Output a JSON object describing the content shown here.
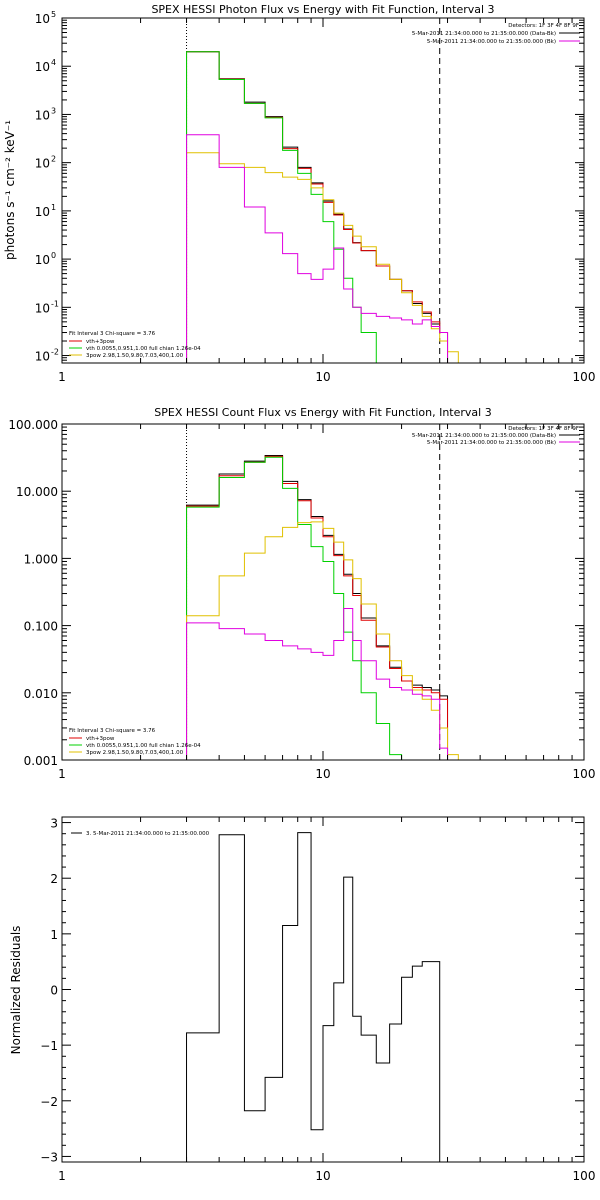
{
  "chart_data": [
    {
      "type": "line",
      "title": "SPEX HESSI Photon Flux vs Energy with Fit Function, Interval 3",
      "ylabel": "photons s⁻¹ cm⁻² keV⁻¹",
      "xscale": "log",
      "yscale": "log",
      "xlim": [
        1,
        100
      ],
      "ylim": [
        0.007,
        100000
      ],
      "xticks": [
        {
          "v": 1,
          "label": "1"
        },
        {
          "v": 10,
          "label": "10"
        },
        {
          "v": 100,
          "label": "100"
        }
      ],
      "yticks": [
        {
          "v": 0.01,
          "base": "10",
          "exp": "-2"
        },
        {
          "v": 0.1,
          "base": "10",
          "exp": "-1"
        },
        {
          "v": 1,
          "base": "10",
          "exp": "0"
        },
        {
          "v": 10,
          "base": "10",
          "exp": "1"
        },
        {
          "v": 100,
          "base": "10",
          "exp": "2"
        },
        {
          "v": 1000,
          "base": "10",
          "exp": "3"
        },
        {
          "v": 10000,
          "base": "10",
          "exp": "4"
        },
        {
          "v": 100000,
          "base": "10",
          "exp": "5"
        }
      ],
      "vlines": [
        {
          "x": 3,
          "style": "dotted"
        },
        {
          "x": 28,
          "style": "dashed"
        }
      ],
      "legend_header": "Detectors: 1F 3F 4F 8F 9F",
      "legend": [
        {
          "label": "5-Mar-2011 21:34:00.000 to 21:35:00.000 (Data-Bk)",
          "color": "#000000"
        },
        {
          "label": "5-Mar-2011 21:34:00.000 to 21:35:00.000 (Bk)",
          "color": "#e000e0"
        }
      ],
      "fit_header": "Fit Interval 3   Chi-square = 3.76",
      "fit_legend": [
        {
          "label": "vth+3pow",
          "color": "#e00000"
        },
        {
          "label": "vth 0.0055,0.951,1.00  full chian 1.26e-04",
          "color": "#00d000"
        },
        {
          "label": "3pow 2.98,1.50,9.80,7.03,400,1.00",
          "color": "#e0c000"
        }
      ],
      "bin_edges": [
        3,
        4,
        5,
        6,
        7,
        8,
        9,
        10,
        11,
        12,
        13,
        14,
        16,
        18,
        20,
        22,
        24,
        26,
        28,
        30,
        33
      ],
      "series": [
        {
          "color": "#000000",
          "values": [
            20000,
            5500,
            1800,
            900,
            210,
            80,
            38,
            16,
            8.5,
            4.2,
            2.2,
            1.5,
            0.72,
            0.38,
            0.22,
            0.12,
            0.075,
            0.045,
            0.03,
            null
          ]
        },
        {
          "color": "#e00000",
          "values": [
            20000,
            5400,
            1700,
            870,
            195,
            76,
            36,
            15,
            8.2,
            4.1,
            2.15,
            1.5,
            0.72,
            0.38,
            0.22,
            0.13,
            0.08,
            0.05,
            0.03,
            null
          ]
        },
        {
          "color": "#00d000",
          "values": [
            20000,
            5300,
            1700,
            850,
            180,
            60,
            22,
            6,
            1.6,
            0.4,
            0.1,
            0.03,
            null,
            null,
            null,
            null,
            null,
            null,
            null,
            null
          ]
        },
        {
          "color": "#e0c000",
          "values": [
            160,
            95,
            80,
            62,
            50,
            45,
            30,
            17,
            9,
            5,
            3,
            1.8,
            0.78,
            0.38,
            0.2,
            0.11,
            0.065,
            0.036,
            0.02,
            0.012
          ]
        },
        {
          "color": "#e000e0",
          "values": [
            380,
            80,
            12,
            3.5,
            1.3,
            0.5,
            0.38,
            0.62,
            1.7,
            0.24,
            0.1,
            0.075,
            0.065,
            0.06,
            0.055,
            0.045,
            0.055,
            0.04,
            0.03,
            null
          ]
        }
      ]
    },
    {
      "type": "line",
      "title": "SPEX HESSI Count Flux vs Energy with Fit Function, Interval 3",
      "ylabel": "",
      "xscale": "log",
      "yscale": "log",
      "xlim": [
        1,
        100
      ],
      "ylim": [
        0.001,
        100
      ],
      "xticks": [
        {
          "v": 1,
          "label": "1"
        },
        {
          "v": 10,
          "label": "10"
        },
        {
          "v": 100,
          "label": "100"
        }
      ],
      "yticks": [
        {
          "v": 0.001,
          "label": "0.001"
        },
        {
          "v": 0.01,
          "label": "0.010"
        },
        {
          "v": 0.1,
          "label": "0.100"
        },
        {
          "v": 1,
          "label": "1.000"
        },
        {
          "v": 10,
          "label": "10.000"
        },
        {
          "v": 100,
          "label": "100.000"
        }
      ],
      "vlines": [
        {
          "x": 3,
          "style": "dotted"
        },
        {
          "x": 28,
          "style": "dashed"
        }
      ],
      "legend_header": "Detectors: 1F 3F 4F 8F 9F",
      "legend": [
        {
          "label": "5-Mar-2011 21:34:00.000 to 21:35:00.000 (Data-Bk)",
          "color": "#000000"
        },
        {
          "label": "5-Mar-2011 21:34:00.000 to 21:35:00.000 (Bk)",
          "color": "#e000e0"
        }
      ],
      "fit_header": "Fit Interval 3   Chi-square = 3.76",
      "fit_legend": [
        {
          "label": "vth+3pow",
          "color": "#e00000"
        },
        {
          "label": "vth 0.0055,0.951,1.00  full chian 1.26e-04",
          "color": "#00d000"
        },
        {
          "label": "3pow 2.98,1.50,9.80,7.03,400,1.00",
          "color": "#e0c000"
        }
      ],
      "bin_edges": [
        3,
        4,
        5,
        6,
        7,
        8,
        9,
        10,
        11,
        12,
        13,
        14,
        16,
        18,
        20,
        22,
        24,
        26,
        28,
        30,
        33
      ],
      "series": [
        {
          "color": "#000000",
          "values": [
            6.2,
            18,
            28,
            34,
            14,
            7.5,
            4.2,
            2.2,
            1.15,
            0.58,
            0.3,
            0.13,
            0.05,
            0.024,
            0.015,
            0.013,
            0.012,
            0.011,
            0.009,
            null
          ]
        },
        {
          "color": "#e00000",
          "values": [
            6,
            17,
            27,
            33,
            13,
            7.2,
            4.0,
            2.1,
            1.1,
            0.55,
            0.28,
            0.12,
            0.048,
            0.023,
            0.015,
            0.012,
            0.011,
            0.01,
            0.008,
            null
          ]
        },
        {
          "color": "#00d000",
          "values": [
            5.8,
            16,
            27,
            32,
            11,
            3.2,
            1.5,
            0.9,
            0.3,
            0.08,
            0.03,
            0.01,
            0.0035,
            0.0012,
            null,
            null,
            null,
            null,
            null,
            null
          ]
        },
        {
          "color": "#e0c000",
          "values": [
            0.14,
            0.55,
            1.2,
            2.1,
            2.9,
            3.4,
            3.5,
            2.8,
            1.75,
            0.95,
            0.5,
            0.21,
            0.075,
            0.03,
            0.018,
            0.011,
            0.008,
            0.0055,
            0.003,
            0.0012
          ]
        },
        {
          "color": "#e000e0",
          "values": [
            0.11,
            0.09,
            0.075,
            0.06,
            0.05,
            0.045,
            0.04,
            0.036,
            0.06,
            0.18,
            0.06,
            0.03,
            0.016,
            0.012,
            0.011,
            0.0095,
            0.009,
            0.008,
            0.0015,
            null
          ]
        }
      ]
    },
    {
      "type": "line",
      "title": "",
      "ylabel": "Normalized Residuals",
      "xscale": "log",
      "yscale": "linear",
      "xlim": [
        1,
        100
      ],
      "ylim": [
        -3.1,
        3.1
      ],
      "xticks": [
        {
          "v": 1,
          "label": "1"
        },
        {
          "v": 10,
          "label": "10"
        },
        {
          "v": 100,
          "label": "100"
        }
      ],
      "yticks": [
        {
          "v": -3,
          "label": "−3"
        },
        {
          "v": -2,
          "label": "−2"
        },
        {
          "v": -1,
          "label": "−1"
        },
        {
          "v": 0,
          "label": "0"
        },
        {
          "v": 1,
          "label": "1"
        },
        {
          "v": 2,
          "label": "2"
        },
        {
          "v": 3,
          "label": "3"
        }
      ],
      "legend": [
        {
          "label": "3.  5-Mar-2011 21:34:00.000 to 21:35:00.000",
          "color": "#000000"
        }
      ],
      "bin_edges": [
        3,
        4,
        5,
        6,
        7,
        8,
        9,
        10,
        11,
        12,
        13,
        14,
        16,
        18,
        20,
        22,
        24,
        26,
        28
      ],
      "series": [
        {
          "color": "#000000",
          "values": [
            -0.78,
            2.78,
            -2.18,
            -1.58,
            1.15,
            2.82,
            -2.52,
            -0.65,
            0.12,
            2.02,
            -0.48,
            -0.82,
            -1.32,
            -0.62,
            0.22,
            0.42,
            0.5,
            0.5
          ]
        }
      ]
    }
  ]
}
